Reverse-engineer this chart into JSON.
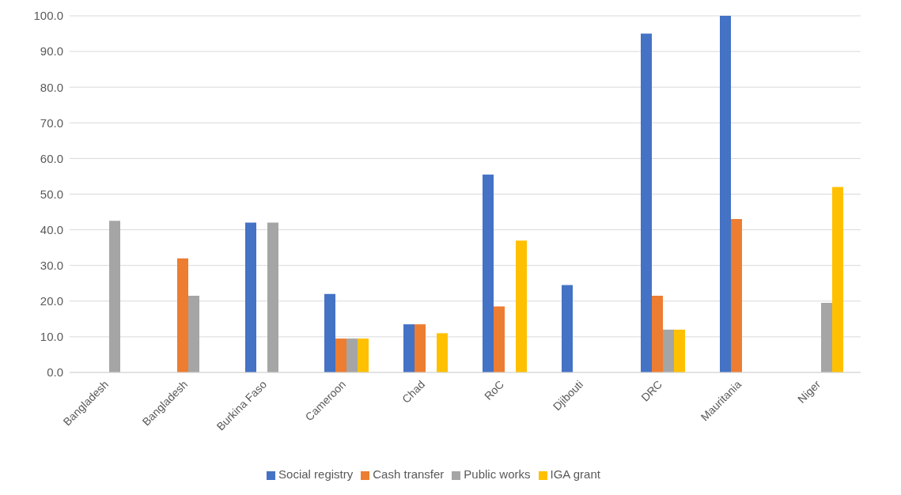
{
  "chart_data": {
    "type": "bar",
    "categories": [
      "Bangladesh",
      "Bangladesh",
      "Burkina Faso",
      "Cameroon",
      "Chad",
      "RoC",
      "Djibouti",
      "DRC",
      "Mauritania",
      "Niger"
    ],
    "series": [
      {
        "name": "Social registry",
        "color": "#4472c4",
        "values": [
          null,
          null,
          42,
          22,
          13.5,
          55.5,
          24.5,
          95,
          100,
          null
        ]
      },
      {
        "name": "Cash transfer",
        "color": "#ed7d31",
        "values": [
          null,
          32,
          null,
          9.5,
          13.5,
          18.5,
          null,
          21.5,
          43,
          null
        ]
      },
      {
        "name": "Public works",
        "color": "#a5a5a5",
        "values": [
          42.5,
          21.5,
          42,
          9.5,
          null,
          null,
          null,
          12,
          null,
          19.5
        ]
      },
      {
        "name": "IGA grant",
        "color": "#ffc000",
        "values": [
          null,
          null,
          null,
          9.5,
          11,
          37,
          null,
          12,
          null,
          52
        ]
      }
    ],
    "ylim": [
      0,
      100
    ],
    "yticks": [
      {
        "value": 0,
        "label": "0.0"
      },
      {
        "value": 10,
        "label": "10.0"
      },
      {
        "value": 20,
        "label": "20.0"
      },
      {
        "value": 30,
        "label": "30.0"
      },
      {
        "value": 40,
        "label": "40.0"
      },
      {
        "value": 50,
        "label": "50.0"
      },
      {
        "value": 60,
        "label": "60.0"
      },
      {
        "value": 70,
        "label": "70.0"
      },
      {
        "value": 80,
        "label": "80.0"
      },
      {
        "value": 90,
        "label": "90.0"
      },
      {
        "value": 100,
        "label": "100.0"
      }
    ],
    "grid": "y",
    "legend": "bottom"
  }
}
